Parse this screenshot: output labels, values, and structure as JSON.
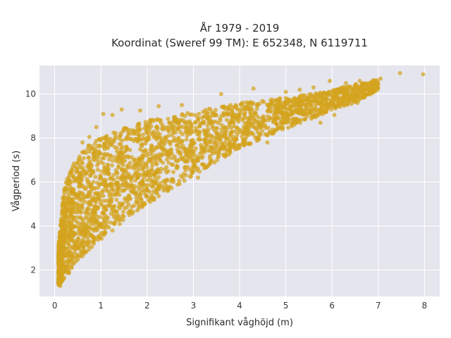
{
  "chart_data": {
    "type": "scatter",
    "title_lines": [
      "År 1979 - 2019",
      "Koordinat (Sweref 99 TM): E 652348, N 6119711"
    ],
    "xlabel": "Signifikant våghöjd (m)",
    "ylabel": "Vågperiod (s)",
    "xlim": [
      -0.33,
      8.33
    ],
    "ylim": [
      0.8,
      11.3
    ],
    "x_ticks": [
      0,
      1,
      2,
      3,
      4,
      5,
      6,
      7,
      8
    ],
    "y_ticks": [
      2,
      4,
      6,
      8,
      10
    ],
    "grid": true,
    "legend": "none",
    "marker_color": "#d4a31e",
    "plot_background": "#e5e5ee",
    "density_envelope": [
      {
        "x": 0.08,
        "lower": 1.3,
        "upper": 3.0
      },
      {
        "x": 0.2,
        "lower": 1.6,
        "upper": 5.8
      },
      {
        "x": 0.4,
        "lower": 2.1,
        "upper": 6.8
      },
      {
        "x": 0.6,
        "lower": 2.6,
        "upper": 7.4
      },
      {
        "x": 0.8,
        "lower": 3.0,
        "upper": 7.8
      },
      {
        "x": 1.0,
        "lower": 3.4,
        "upper": 8.1
      },
      {
        "x": 1.5,
        "lower": 4.2,
        "upper": 8.5
      },
      {
        "x": 2.0,
        "lower": 5.0,
        "upper": 8.8
      },
      {
        "x": 2.5,
        "lower": 5.6,
        "upper": 9.0
      },
      {
        "x": 3.0,
        "lower": 6.3,
        "upper": 9.2
      },
      {
        "x": 3.5,
        "lower": 6.9,
        "upper": 9.4
      },
      {
        "x": 4.0,
        "lower": 7.5,
        "upper": 9.6
      },
      {
        "x": 4.5,
        "lower": 8.0,
        "upper": 9.7
      },
      {
        "x": 5.0,
        "lower": 8.4,
        "upper": 9.85
      },
      {
        "x": 5.5,
        "lower": 8.8,
        "upper": 10.0
      },
      {
        "x": 6.0,
        "lower": 9.3,
        "upper": 10.2
      },
      {
        "x": 6.5,
        "lower": 9.6,
        "upper": 10.45
      },
      {
        "x": 7.0,
        "lower": 10.2,
        "upper": 10.7
      }
    ],
    "outlier_points": [
      {
        "x": 7.47,
        "y": 10.95
      },
      {
        "x": 7.97,
        "y": 10.9
      },
      {
        "x": 7.05,
        "y": 10.7
      },
      {
        "x": 6.98,
        "y": 10.62
      },
      {
        "x": 6.85,
        "y": 10.55
      },
      {
        "x": 6.6,
        "y": 10.6
      },
      {
        "x": 6.3,
        "y": 10.5
      },
      {
        "x": 5.95,
        "y": 10.6
      },
      {
        "x": 6.1,
        "y": 10.2
      },
      {
        "x": 5.3,
        "y": 10.2
      },
      {
        "x": 5.6,
        "y": 10.3
      },
      {
        "x": 4.3,
        "y": 10.25
      },
      {
        "x": 5.0,
        "y": 10.1
      },
      {
        "x": 3.6,
        "y": 10.0
      },
      {
        "x": 2.75,
        "y": 9.5
      },
      {
        "x": 2.25,
        "y": 9.45
      },
      {
        "x": 1.85,
        "y": 9.25
      },
      {
        "x": 1.45,
        "y": 9.3
      },
      {
        "x": 1.25,
        "y": 9.05
      },
      {
        "x": 1.05,
        "y": 9.1
      },
      {
        "x": 0.9,
        "y": 8.5
      },
      {
        "x": 0.6,
        "y": 7.8
      },
      {
        "x": 0.75,
        "y": 8.05
      },
      {
        "x": 1.25,
        "y": 3.8
      },
      {
        "x": 2.15,
        "y": 5.2
      },
      {
        "x": 3.1,
        "y": 6.2
      },
      {
        "x": 4.6,
        "y": 7.8
      },
      {
        "x": 5.4,
        "y": 8.85
      },
      {
        "x": 5.75,
        "y": 8.7
      },
      {
        "x": 6.05,
        "y": 9.05
      },
      {
        "x": 6.55,
        "y": 9.6
      },
      {
        "x": 0.12,
        "y": 1.28
      },
      {
        "x": 0.14,
        "y": 1.45
      }
    ]
  }
}
